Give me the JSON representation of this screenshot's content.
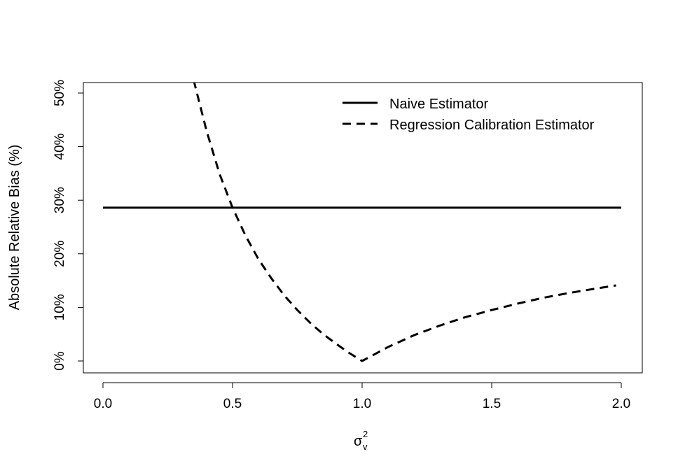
{
  "chart_data": {
    "type": "line",
    "title": "",
    "xlabel": "σ",
    "xlabel_superscript": "2",
    "xlabel_subscript": "v",
    "ylabel": "Absolute Relative Bias (%)",
    "xlim": [
      0.0,
      2.0
    ],
    "ylim": [
      0,
      50
    ],
    "x_ticks": [
      0.0,
      0.5,
      1.0,
      1.5,
      2.0
    ],
    "x_tick_labels": [
      "0.0",
      "0.5",
      "1.0",
      "1.5",
      "2.0"
    ],
    "y_ticks": [
      0,
      10,
      20,
      30,
      40,
      50
    ],
    "y_tick_labels": [
      "0%",
      "10%",
      "20%",
      "30%",
      "40%",
      "50%"
    ],
    "grid": false,
    "legend_position": "top-right",
    "series": [
      {
        "name": "Naive Estimator",
        "line_style": "solid",
        "color": "#000000",
        "x": [
          0.0,
          2.0
        ],
        "y": [
          28.6,
          28.6
        ]
      },
      {
        "name": "Regression Calibration Estimator",
        "line_style": "dashed",
        "color": "#000000",
        "x": [
          0.35,
          0.4,
          0.45,
          0.5,
          0.55,
          0.6,
          0.65,
          0.7,
          0.75,
          0.8,
          0.85,
          0.9,
          0.95,
          1.0,
          1.1,
          1.2,
          1.3,
          1.4,
          1.5,
          1.6,
          1.7,
          1.8,
          1.9,
          1.98
        ],
        "y": [
          52.4,
          42.9,
          34.9,
          28.6,
          23.4,
          19.0,
          15.4,
          12.2,
          9.5,
          7.1,
          5.0,
          3.2,
          1.5,
          0.0,
          2.6,
          4.8,
          6.6,
          8.2,
          9.5,
          10.7,
          11.8,
          12.7,
          13.5,
          14.1
        ]
      }
    ]
  }
}
